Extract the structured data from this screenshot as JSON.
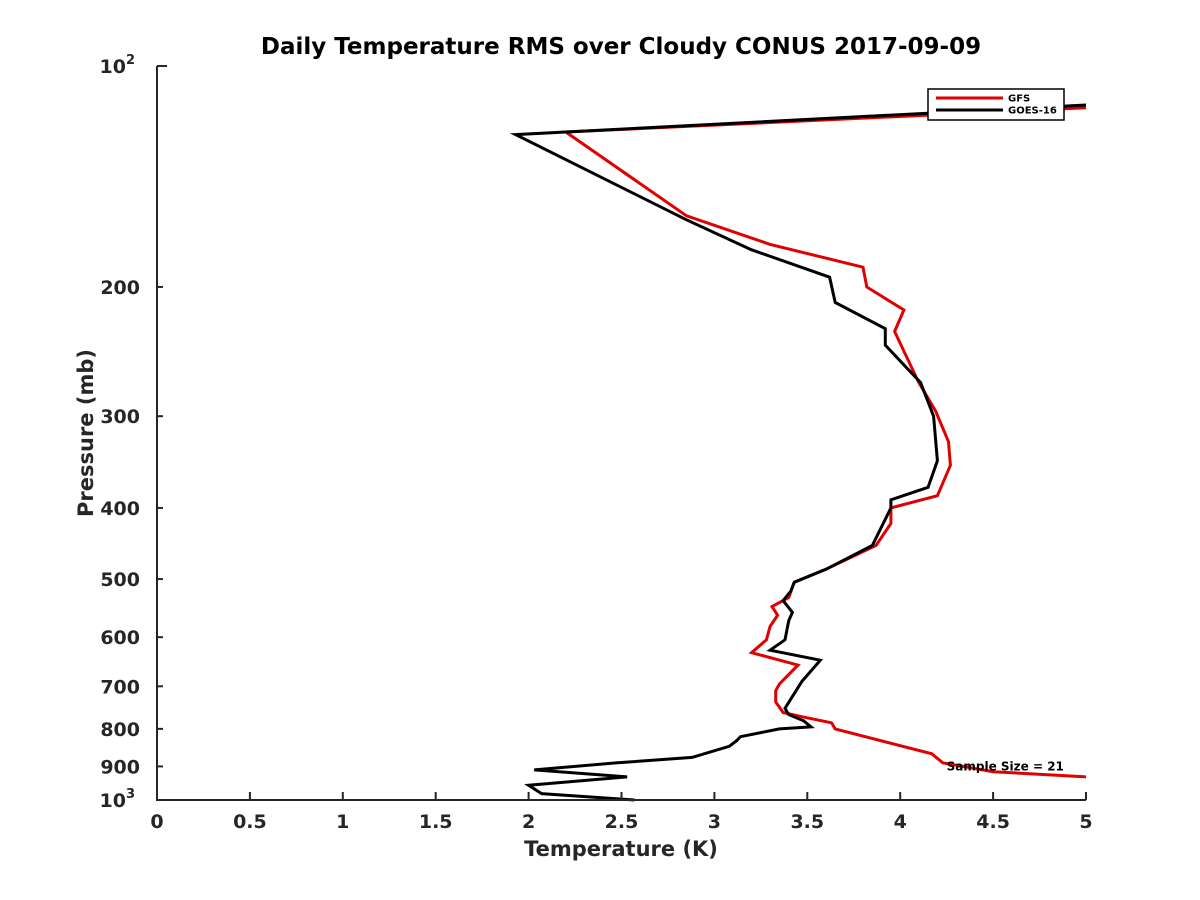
{
  "chart_data": {
    "type": "line",
    "title": "Daily Temperature RMS over Cloudy CONUS 2017-09-09",
    "xlabel": "Temperature (K)",
    "ylabel": "Pressure (mb)",
    "xlim": [
      0,
      5
    ],
    "ylim": [
      100,
      1000
    ],
    "y_scale": "log",
    "y_reversed": true,
    "grid": false,
    "legend_position": "top-right",
    "x_ticks": [
      {
        "value": 0,
        "label": "0"
      },
      {
        "value": 0.5,
        "label": "0.5"
      },
      {
        "value": 1,
        "label": "1"
      },
      {
        "value": 1.5,
        "label": "1.5"
      },
      {
        "value": 2,
        "label": "2"
      },
      {
        "value": 2.5,
        "label": "2.5"
      },
      {
        "value": 3,
        "label": "3"
      },
      {
        "value": 3.5,
        "label": "3.5"
      },
      {
        "value": 4,
        "label": "4"
      },
      {
        "value": 4.5,
        "label": "4.5"
      },
      {
        "value": 5,
        "label": "5"
      }
    ],
    "y_ticks": [
      {
        "value": 100,
        "label": "",
        "base": "10",
        "exp": "2"
      },
      {
        "value": 200,
        "label": "200"
      },
      {
        "value": 300,
        "label": "300"
      },
      {
        "value": 400,
        "label": "400"
      },
      {
        "value": 500,
        "label": "500"
      },
      {
        "value": 600,
        "label": "600"
      },
      {
        "value": 700,
        "label": "700"
      },
      {
        "value": 800,
        "label": "800"
      },
      {
        "value": 900,
        "label": "900"
      },
      {
        "value": 1000,
        "label": "",
        "base": "10",
        "exp": "3"
      }
    ],
    "series": [
      {
        "name": "GFS",
        "color": "#e00000",
        "x": [
          5.0,
          2.2,
          2.85,
          3.3,
          3.8,
          3.82,
          4.02,
          3.97,
          4.1,
          4.19,
          4.26,
          4.27,
          4.2,
          3.95,
          3.95,
          3.87,
          3.6,
          3.43,
          3.4,
          3.31,
          3.34,
          3.3,
          3.28,
          3.2,
          3.45,
          3.35,
          3.33,
          3.33,
          3.37,
          3.47,
          3.63,
          3.65,
          4.17,
          4.23,
          4.5,
          5.0
        ],
        "y": [
          114,
          123,
          160,
          175,
          188,
          200,
          215,
          230,
          270,
          295,
          325,
          350,
          385,
          400,
          420,
          450,
          485,
          505,
          530,
          545,
          560,
          580,
          605,
          630,
          655,
          695,
          710,
          735,
          760,
          770,
          785,
          800,
          865,
          890,
          915,
          930
        ]
      },
      {
        "name": "GOES-16",
        "color": "#000000",
        "x": [
          5.0,
          1.93,
          2.85,
          3.2,
          3.62,
          3.65,
          3.92,
          3.92,
          4.11,
          4.18,
          4.2,
          4.15,
          3.95,
          3.95,
          3.85,
          3.6,
          3.43,
          3.41,
          3.37,
          3.42,
          3.4,
          3.38,
          3.3,
          3.57,
          3.47,
          3.38,
          3.4,
          3.48,
          3.52,
          3.35,
          3.14,
          3.12,
          3.08,
          2.88,
          2.47,
          2.03,
          2.53,
          2.0,
          2.07,
          2.57
        ],
        "y": [
          113,
          124,
          162,
          178,
          194,
          210,
          228,
          240,
          270,
          300,
          345,
          375,
          390,
          400,
          450,
          485,
          505,
          520,
          535,
          555,
          570,
          605,
          625,
          645,
          690,
          750,
          765,
          780,
          795,
          800,
          820,
          830,
          845,
          875,
          890,
          910,
          930,
          955,
          980,
          1000
        ]
      }
    ],
    "annotations": [
      {
        "text": "Sample Size = 21",
        "x": 4.25,
        "y": 900
      }
    ]
  }
}
